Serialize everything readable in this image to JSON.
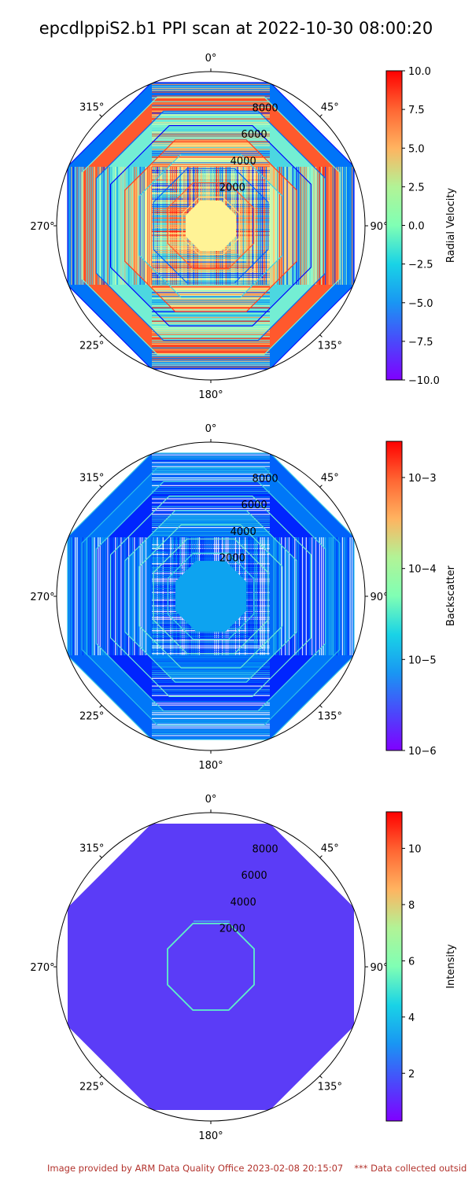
{
  "title": "epcdlppiS2.b1 PPI scan at 2022-10-30 08:00:20",
  "footer": {
    "left": "Image provided by ARM Data Quality Office 2023-02-08 20:15:07",
    "right": "*** Data collected outsid"
  },
  "chart_data": [
    {
      "type": "polar",
      "name": "Radial Velocity panel",
      "theta_labels": [
        "0°",
        "45°",
        "90°",
        "135°",
        "180°",
        "225°",
        "270°",
        "315°"
      ],
      "r_ticks": [
        "2000",
        "4000",
        "6000",
        "8000"
      ],
      "range_rings": [
        1050,
        2000,
        3000,
        4000,
        5000,
        6000,
        7000,
        8000,
        9000,
        10000
      ],
      "colorbar": {
        "label": "Radial Velocity",
        "scale": "linear",
        "min": -10.0,
        "max": 10.0,
        "tick_labels": [
          "10.0",
          "7.5",
          "5.0",
          "2.5",
          "0.0",
          "−2.5",
          "−5.0",
          "−7.5",
          "−10.0"
        ],
        "colormap": "rainbow"
      }
    },
    {
      "type": "polar",
      "name": "Backscatter panel",
      "theta_labels": [
        "0°",
        "45°",
        "90°",
        "135°",
        "180°",
        "225°",
        "270°",
        "315°"
      ],
      "r_ticks": [
        "2000",
        "4000",
        "6000",
        "8000"
      ],
      "range_rings": [
        1050,
        2000,
        3000,
        4000,
        5000,
        6000,
        7000,
        8000,
        9000,
        10000
      ],
      "colorbar": {
        "label": "Backscatter",
        "scale": "log",
        "min": 1e-06,
        "max": 0.0025,
        "tick_labels": [
          "10−3",
          "10−4",
          "10−5",
          "10−6"
        ],
        "colormap": "rainbow"
      }
    },
    {
      "type": "polar",
      "name": "Intensity panel",
      "theta_labels": [
        "0°",
        "45°",
        "90°",
        "135°",
        "180°",
        "225°",
        "270°",
        "315°"
      ],
      "r_ticks": [
        "2000",
        "4000",
        "6000",
        "8000"
      ],
      "range_rings": [
        10000
      ],
      "colorbar": {
        "label": "Intensity",
        "scale": "linear",
        "min": 0.3,
        "max": 11.3,
        "tick_labels": [
          "10",
          "8",
          "6",
          "4",
          "2"
        ],
        "colormap": "rainbow"
      }
    }
  ]
}
